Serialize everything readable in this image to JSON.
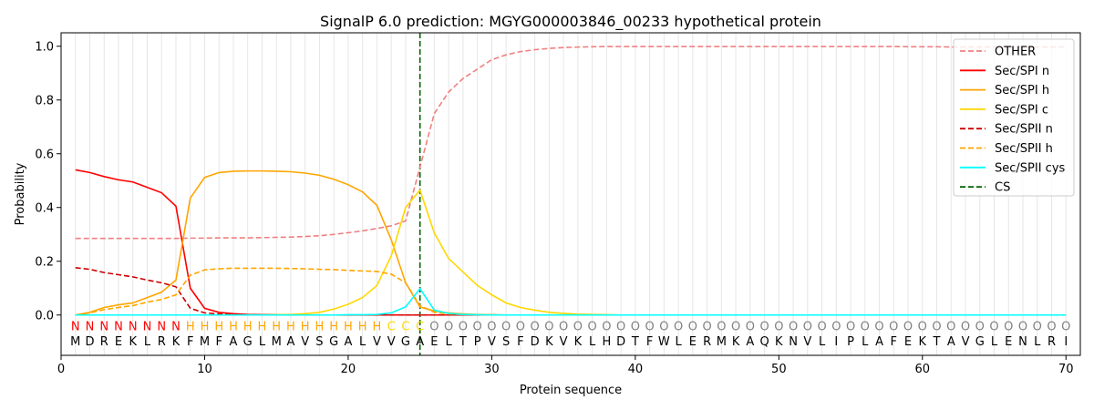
{
  "chart_data": {
    "type": "line",
    "title": "SignalP 6.0 prediction: MGYG000003846_00233 hypothetical protein",
    "xlabel": "Protein sequence",
    "ylabel": "Probability",
    "xlim": [
      0,
      71
    ],
    "ylim": [
      -0.15,
      1.05
    ],
    "x_ticks": [
      0,
      10,
      20,
      30,
      40,
      50,
      60,
      70
    ],
    "y_ticks": [
      0.0,
      0.2,
      0.4,
      0.6,
      0.8,
      1.0
    ],
    "x_tick_labels": [
      "0",
      "10",
      "20",
      "30",
      "40",
      "50",
      "60",
      "70"
    ],
    "y_tick_labels": [
      "0.0",
      "0.2",
      "0.4",
      "0.6",
      "0.8",
      "1.0"
    ],
    "grid": "vertical lines at each residue",
    "legend_position": "top-right",
    "cleavage_site": 25,
    "sequence": [
      "M",
      "D",
      "R",
      "E",
      "K",
      "L",
      "R",
      "K",
      "F",
      "M",
      "F",
      "A",
      "G",
      "L",
      "M",
      "A",
      "V",
      "S",
      "G",
      "A",
      "L",
      "V",
      "V",
      "G",
      "A",
      "E",
      "L",
      "T",
      "P",
      "V",
      "S",
      "F",
      "D",
      "K",
      "V",
      "K",
      "L",
      "H",
      "D",
      "T",
      "F",
      "W",
      "L",
      "E",
      "R",
      "M",
      "K",
      "A",
      "Q",
      "K",
      "N",
      "V",
      "L",
      "I",
      "P",
      "L",
      "A",
      "F",
      "E",
      "K",
      "T",
      "A",
      "V",
      "G",
      "L",
      "E",
      "N",
      "L",
      "R",
      "I"
    ],
    "region_labels": [
      "N",
      "N",
      "N",
      "N",
      "N",
      "N",
      "N",
      "N",
      "H",
      "H",
      "H",
      "H",
      "H",
      "H",
      "H",
      "H",
      "H",
      "H",
      "H",
      "H",
      "H",
      "H",
      "C",
      "C",
      "C",
      "O",
      "O",
      "O",
      "O",
      "O",
      "O",
      "O",
      "O",
      "O",
      "O",
      "O",
      "O",
      "O",
      "O",
      "O",
      "O",
      "O",
      "O",
      "O",
      "O",
      "O",
      "O",
      "O",
      "O",
      "O",
      "O",
      "O",
      "O",
      "O",
      "O",
      "O",
      "O",
      "O",
      "O",
      "O",
      "O",
      "O",
      "O",
      "O",
      "O",
      "O",
      "O",
      "O",
      "O",
      "O"
    ],
    "region_colors": {
      "N": "#ff0000",
      "H": "#ffa500",
      "C": "#ffd700",
      "O": "#808080"
    },
    "series": [
      {
        "name": "OTHER",
        "color": "#f08080",
        "dash": "dashed",
        "values": [
          0.285,
          0.285,
          0.285,
          0.285,
          0.285,
          0.285,
          0.285,
          0.285,
          0.286,
          0.286,
          0.287,
          0.287,
          0.287,
          0.288,
          0.289,
          0.29,
          0.292,
          0.295,
          0.3,
          0.306,
          0.313,
          0.322,
          0.332,
          0.35,
          0.55,
          0.75,
          0.83,
          0.88,
          0.915,
          0.95,
          0.968,
          0.98,
          0.987,
          0.992,
          0.995,
          0.997,
          0.998,
          0.999,
          0.999,
          0.999,
          0.999,
          0.999,
          0.999,
          0.999,
          0.999,
          0.999,
          0.999,
          0.999,
          0.999,
          0.999,
          0.999,
          0.999,
          0.999,
          0.999,
          0.999,
          0.999,
          0.999,
          0.999,
          0.998,
          0.998,
          0.998,
          0.997,
          0.997,
          0.997,
          0.997,
          0.997,
          0.997,
          0.997,
          0.997,
          0.998
        ]
      },
      {
        "name": "Sec/SPI n",
        "color": "#ff0000",
        "dash": "solid",
        "values": [
          0.54,
          0.53,
          0.515,
          0.503,
          0.495,
          0.475,
          0.455,
          0.405,
          0.1,
          0.025,
          0.01,
          0.005,
          0.002,
          0.001,
          0.001,
          0.001,
          0.0,
          0.0,
          0.0,
          0.0,
          0.0,
          0.0,
          0.0,
          0.0,
          0.0,
          0.0,
          0.0,
          0.0,
          0.0,
          0.0,
          0.0,
          0.0,
          0.0,
          0.0,
          0.0,
          0.0,
          0.0,
          0.0,
          0.0,
          0.0,
          0.0,
          0.0,
          0.0,
          0.0,
          0.0,
          0.0,
          0.0,
          0.0,
          0.0,
          0.0,
          0.0,
          0.0,
          0.0,
          0.0,
          0.0,
          0.0,
          0.0,
          0.0,
          0.0,
          0.0,
          0.0,
          0.0,
          0.0,
          0.0,
          0.0,
          0.0,
          0.0,
          0.0,
          0.0,
          0.0
        ]
      },
      {
        "name": "Sec/SPI h",
        "color": "#ffa500",
        "dash": "solid",
        "values": [
          0.0,
          0.01,
          0.028,
          0.038,
          0.045,
          0.065,
          0.085,
          0.13,
          0.435,
          0.512,
          0.53,
          0.535,
          0.536,
          0.536,
          0.535,
          0.533,
          0.528,
          0.52,
          0.505,
          0.485,
          0.458,
          0.408,
          0.28,
          0.12,
          0.03,
          0.015,
          0.008,
          0.004,
          0.002,
          0.001,
          0.0,
          0.0,
          0.0,
          0.0,
          0.0,
          0.0,
          0.0,
          0.0,
          0.0,
          0.0,
          0.0,
          0.0,
          0.0,
          0.0,
          0.0,
          0.0,
          0.0,
          0.0,
          0.0,
          0.0,
          0.0,
          0.0,
          0.0,
          0.0,
          0.0,
          0.0,
          0.0,
          0.0,
          0.0,
          0.0,
          0.0,
          0.0,
          0.0,
          0.0,
          0.0,
          0.0,
          0.0,
          0.0,
          0.0,
          0.0
        ]
      },
      {
        "name": "Sec/SPI c",
        "color": "#ffd700",
        "dash": "solid",
        "values": [
          0.0,
          0.0,
          0.0,
          0.0,
          0.0,
          0.0,
          0.0,
          0.0,
          0.0,
          0.0,
          0.0,
          0.0,
          0.0,
          0.0,
          0.001,
          0.002,
          0.005,
          0.01,
          0.022,
          0.04,
          0.065,
          0.11,
          0.22,
          0.4,
          0.465,
          0.305,
          0.21,
          0.16,
          0.11,
          0.075,
          0.045,
          0.028,
          0.018,
          0.01,
          0.006,
          0.003,
          0.002,
          0.001,
          0.0,
          0.0,
          0.0,
          0.0,
          0.0,
          0.0,
          0.0,
          0.0,
          0.0,
          0.0,
          0.0,
          0.0,
          0.0,
          0.0,
          0.0,
          0.0,
          0.0,
          0.0,
          0.0,
          0.0,
          0.0,
          0.0,
          0.0,
          0.0,
          0.0,
          0.0,
          0.0,
          0.0,
          0.0,
          0.0,
          0.0,
          0.0
        ]
      },
      {
        "name": "Sec/SPII n",
        "color": "#cc0000",
        "dash": "dashed",
        "values": [
          0.176,
          0.17,
          0.158,
          0.15,
          0.142,
          0.13,
          0.12,
          0.105,
          0.025,
          0.008,
          0.004,
          0.002,
          0.001,
          0.0,
          0.0,
          0.0,
          0.0,
          0.0,
          0.0,
          0.0,
          0.0,
          0.0,
          0.0,
          0.0,
          0.0,
          0.0,
          0.0,
          0.0,
          0.0,
          0.0,
          0.0,
          0.0,
          0.0,
          0.0,
          0.0,
          0.0,
          0.0,
          0.0,
          0.0,
          0.0,
          0.0,
          0.0,
          0.0,
          0.0,
          0.0,
          0.0,
          0.0,
          0.0,
          0.0,
          0.0,
          0.0,
          0.0,
          0.0,
          0.0,
          0.0,
          0.0,
          0.0,
          0.0,
          0.0,
          0.0,
          0.0,
          0.0,
          0.0,
          0.0,
          0.0,
          0.0,
          0.0,
          0.0,
          0.0,
          0.0
        ]
      },
      {
        "name": "Sec/SPII h",
        "color": "#ffa500",
        "dash": "dashed",
        "values": [
          0.0,
          0.008,
          0.02,
          0.028,
          0.035,
          0.048,
          0.058,
          0.075,
          0.148,
          0.168,
          0.172,
          0.174,
          0.174,
          0.174,
          0.174,
          0.173,
          0.172,
          0.17,
          0.169,
          0.166,
          0.164,
          0.162,
          0.152,
          0.12,
          0.035,
          0.01,
          0.004,
          0.002,
          0.001,
          0.0,
          0.0,
          0.0,
          0.0,
          0.0,
          0.0,
          0.0,
          0.0,
          0.0,
          0.0,
          0.0,
          0.0,
          0.0,
          0.0,
          0.0,
          0.0,
          0.0,
          0.0,
          0.0,
          0.0,
          0.0,
          0.0,
          0.0,
          0.0,
          0.0,
          0.0,
          0.0,
          0.0,
          0.0,
          0.0,
          0.0,
          0.0,
          0.0,
          0.0,
          0.0,
          0.0,
          0.0,
          0.0,
          0.0,
          0.0,
          0.0
        ]
      },
      {
        "name": "Sec/SPII cys",
        "color": "#00ffff",
        "dash": "solid",
        "values": [
          0.0,
          0.0,
          0.0,
          0.0,
          0.0,
          0.0,
          0.0,
          0.0,
          0.0,
          0.0,
          0.0,
          0.0,
          0.0,
          0.0,
          0.0,
          0.0,
          0.0,
          0.0,
          0.0,
          0.001,
          0.001,
          0.002,
          0.008,
          0.03,
          0.098,
          0.018,
          0.006,
          0.002,
          0.001,
          0.0,
          0.0,
          0.0,
          0.0,
          0.0,
          0.0,
          0.0,
          0.0,
          0.0,
          0.0,
          0.0,
          0.0,
          0.0,
          0.0,
          0.0,
          0.0,
          0.0,
          0.0,
          0.0,
          0.0,
          0.0,
          0.0,
          0.0,
          0.0,
          0.0,
          0.0,
          0.0,
          0.0,
          0.0,
          0.0,
          0.0,
          0.0,
          0.0,
          0.0,
          0.0,
          0.0,
          0.0,
          0.0,
          0.0,
          0.0,
          0.0
        ]
      },
      {
        "name": "CS",
        "color": "#006400",
        "dash": "dashed",
        "vertical_at": 25
      }
    ]
  }
}
